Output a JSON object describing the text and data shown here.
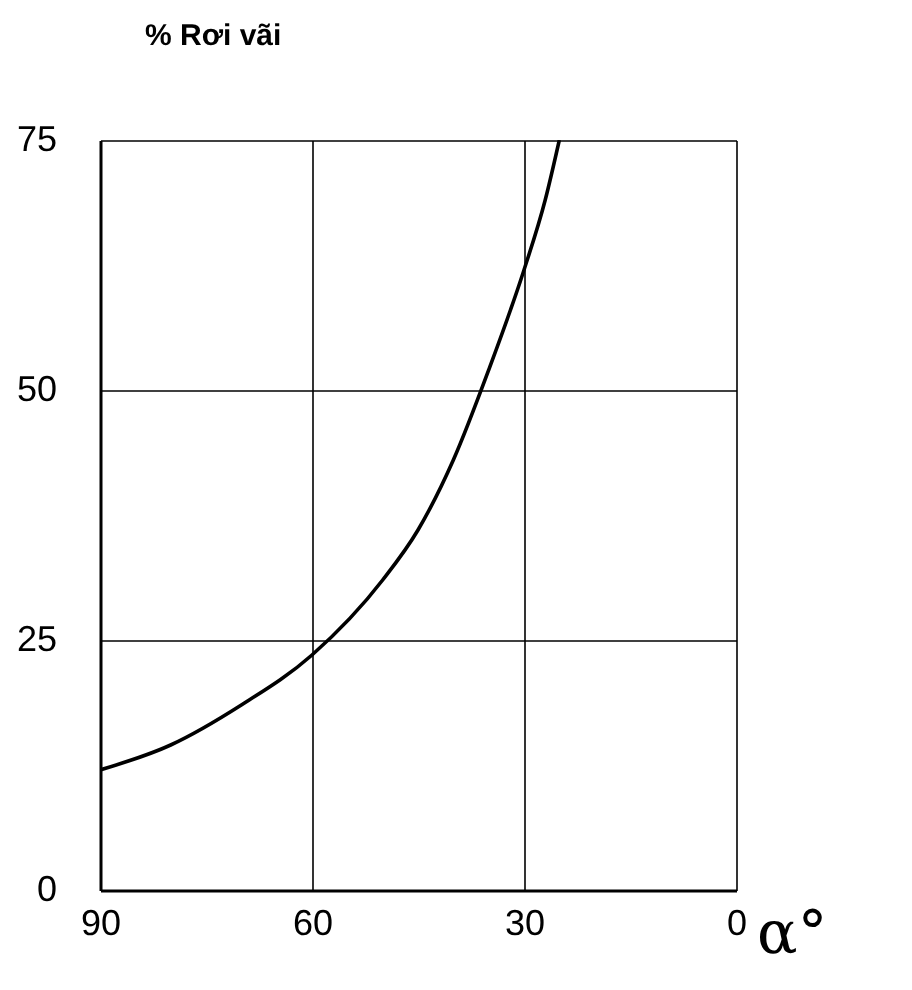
{
  "chart_data": {
    "type": "line",
    "xlabel": "α°",
    "ylabel": "% Rơi vãi",
    "x": [
      90,
      80,
      70,
      60,
      50,
      45,
      40,
      35,
      30,
      27,
      25
    ],
    "series": [
      {
        "color": "#000000",
        "values": [
          12,
          14.5,
          18.5,
          23.5,
          31,
          36,
          43,
          52,
          62,
          69,
          75
        ]
      }
    ],
    "xlim": [
      90,
      0
    ],
    "xticks": [
      90,
      60,
      30,
      0
    ],
    "ylim": [
      0,
      75
    ],
    "yticks": [
      0,
      25,
      50,
      75
    ],
    "grid": true,
    "legend": false,
    "marker": "none",
    "line_style": "solid"
  }
}
